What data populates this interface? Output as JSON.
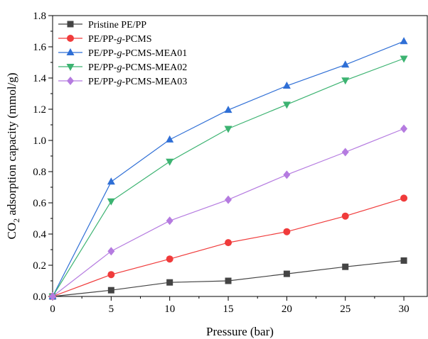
{
  "chart_data": {
    "type": "line",
    "xlabel": "Pressure (bar)",
    "ylabel": {
      "prefix": "CO",
      "subscript": "2",
      "suffix": " adsorption capacity (mmol/g)"
    },
    "xlim": [
      0,
      32
    ],
    "ylim": [
      0,
      1.8
    ],
    "x_ticks": [
      "0",
      "5",
      "10",
      "15",
      "20",
      "25",
      "30"
    ],
    "y_ticks": [
      "0.0",
      "0.2",
      "0.4",
      "0.6",
      "0.8",
      "1.0",
      "1.2",
      "1.4",
      "1.6",
      "1.8"
    ],
    "grid": false,
    "legend_position": "top-left",
    "x": [
      0,
      5,
      10,
      15,
      20,
      25,
      30
    ],
    "series": [
      {
        "name": "Pristine PE/PP",
        "legend": {
          "before": "Pristine PE/PP",
          "italic": "",
          "after": ""
        },
        "color": "#444444",
        "marker": "square",
        "values": [
          0.0,
          0.04,
          0.09,
          0.1,
          0.145,
          0.19,
          0.23
        ]
      },
      {
        "name": "PE/PP-g-PCMS",
        "legend": {
          "before": "PE/PP-",
          "italic": "g",
          "after": "-PCMS"
        },
        "color": "#f03b3b",
        "marker": "circle",
        "values": [
          0.0,
          0.14,
          0.24,
          0.345,
          0.415,
          0.515,
          0.63
        ]
      },
      {
        "name": "PE/PP-g-PCMS-MEA01",
        "legend": {
          "before": "PE/PP-",
          "italic": "g",
          "after": "-PCMS-MEA01"
        },
        "color": "#2f6fd6",
        "marker": "triangle-up",
        "values": [
          0.0,
          0.735,
          1.005,
          1.195,
          1.35,
          1.485,
          1.635
        ]
      },
      {
        "name": "PE/PP-g-PCMS-MEA02",
        "legend": {
          "before": "PE/PP-",
          "italic": "g",
          "after": "-PCMS-MEA02"
        },
        "color": "#3cb371",
        "marker": "triangle-down",
        "values": [
          0.0,
          0.61,
          0.865,
          1.075,
          1.23,
          1.385,
          1.525
        ]
      },
      {
        "name": "PE/PP-g-PCMS-MEA03",
        "legend": {
          "before": "PE/PP-",
          "italic": "g",
          "after": "-PCMS-MEA03"
        },
        "color": "#b57be0",
        "marker": "diamond",
        "values": [
          0.0,
          0.29,
          0.485,
          0.62,
          0.78,
          0.925,
          1.075
        ]
      }
    ]
  }
}
